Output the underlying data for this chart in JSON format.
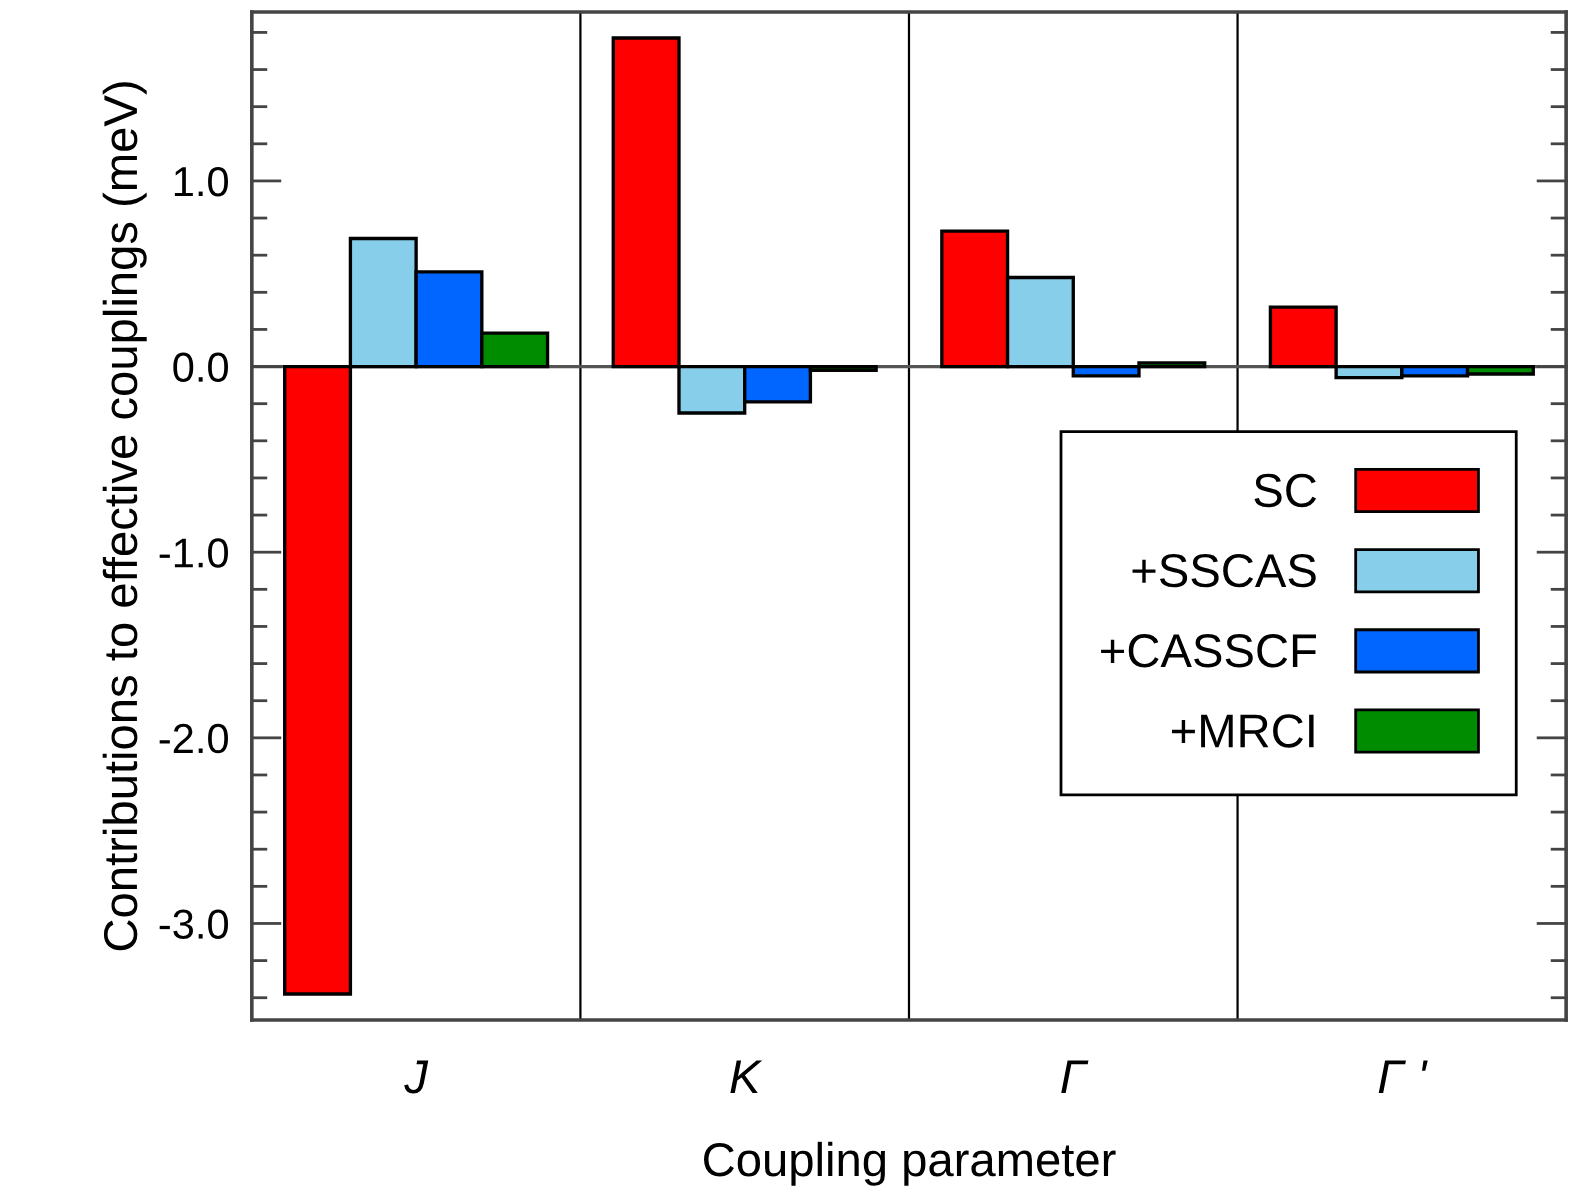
{
  "chart_data": {
    "type": "bar",
    "xlabel": "Coupling parameter",
    "ylabel": "Contributions to effective couplings (meV)",
    "categories": [
      "J",
      "K",
      "Γ",
      "Γ '"
    ],
    "series": [
      {
        "name": "SC",
        "color": "#ff0000",
        "values": [
          -3.38,
          1.77,
          0.73,
          0.32
        ]
      },
      {
        "name": "+SSCAS",
        "color": "#87ceeb",
        "values": [
          0.69,
          -0.25,
          0.48,
          -0.06
        ]
      },
      {
        "name": "+CASSCF",
        "color": "#0066ff",
        "values": [
          0.51,
          -0.19,
          -0.05,
          -0.05
        ]
      },
      {
        "name": "+MRCI",
        "color": "#008c00",
        "values": [
          0.18,
          -0.02,
          0.02,
          -0.04
        ]
      }
    ],
    "ylim": [
      -3.52,
      1.91
    ],
    "yticks": [
      {
        "value": -3.4,
        "label": null
      },
      {
        "value": -3.2,
        "label": null
      },
      {
        "value": -3.0,
        "label": "-3.0"
      },
      {
        "value": -2.8,
        "label": null
      },
      {
        "value": -2.6,
        "label": null
      },
      {
        "value": -2.4,
        "label": null
      },
      {
        "value": -2.2,
        "label": null
      },
      {
        "value": -2.0,
        "label": "-2.0"
      },
      {
        "value": -1.8,
        "label": null
      },
      {
        "value": -1.6,
        "label": null
      },
      {
        "value": -1.4,
        "label": null
      },
      {
        "value": -1.2,
        "label": null
      },
      {
        "value": -1.0,
        "label": "-1.0"
      },
      {
        "value": -0.8,
        "label": null
      },
      {
        "value": -0.6,
        "label": null
      },
      {
        "value": -0.4,
        "label": null
      },
      {
        "value": -0.2,
        "label": null
      },
      {
        "value": 0.0,
        "label": "0.0"
      },
      {
        "value": 0.2,
        "label": null
      },
      {
        "value": 0.4,
        "label": null
      },
      {
        "value": 0.6,
        "label": null
      },
      {
        "value": 0.8,
        "label": null
      },
      {
        "value": 1.0,
        "label": "1.0"
      },
      {
        "value": 1.2,
        "label": null
      },
      {
        "value": 1.4,
        "label": null
      },
      {
        "value": 1.6,
        "label": null
      },
      {
        "value": 1.8,
        "label": null
      }
    ],
    "ref_lines": [
      {
        "axis": "y",
        "value": 0,
        "label": null,
        "color": "#555555"
      }
    ],
    "legend": "bottom right",
    "grid": false
  }
}
